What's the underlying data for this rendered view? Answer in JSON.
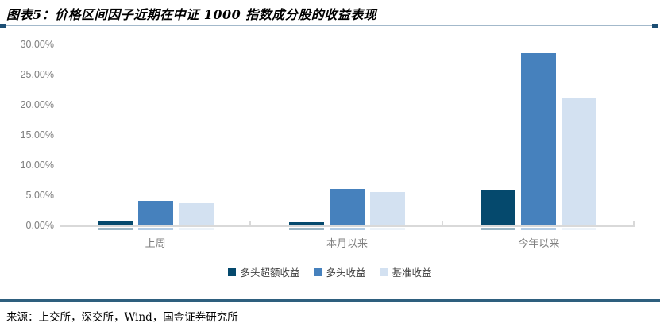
{
  "header": {
    "title": "图表5：价格区间因子近期在中证 1000 指数成分股的收益表现"
  },
  "footer": {
    "source": "来源：上交所，深交所，Wind，国金证券研究所"
  },
  "chart_data": {
    "type": "bar",
    "title": "价格区间因子近期在中证 1000 指数成分股的收益表现",
    "categories": [
      "上周",
      "本月以来",
      "今年以来"
    ],
    "series": [
      {
        "name": "多头超额收益",
        "color": "#05496d",
        "values": [
          0.6,
          0.5,
          5.9
        ]
      },
      {
        "name": "多头收益",
        "color": "#4681bd",
        "values": [
          4.1,
          6.1,
          28.6
        ]
      },
      {
        "name": "基准收益",
        "color": "#d3e1f1",
        "values": [
          3.7,
          5.5,
          21.0
        ]
      }
    ],
    "xlabel": "",
    "ylabel": "",
    "ylim": [
      0,
      30
    ],
    "ytick_step": 5,
    "ytick_labels": [
      "0.00%",
      "5.00%",
      "10.00%",
      "15.00%",
      "20.00%",
      "25.00%",
      "30.00%"
    ],
    "grid": false,
    "legend_position": "bottom",
    "unit": "%"
  },
  "colors": {
    "axis_line": "#d9d9d9",
    "axis_text": "#7f7f7f",
    "legend_text": "#404040",
    "title_rule": "#a3b9cb",
    "title_rule_end": "#1c4e74",
    "footer_rule": "#2e5f7e"
  }
}
